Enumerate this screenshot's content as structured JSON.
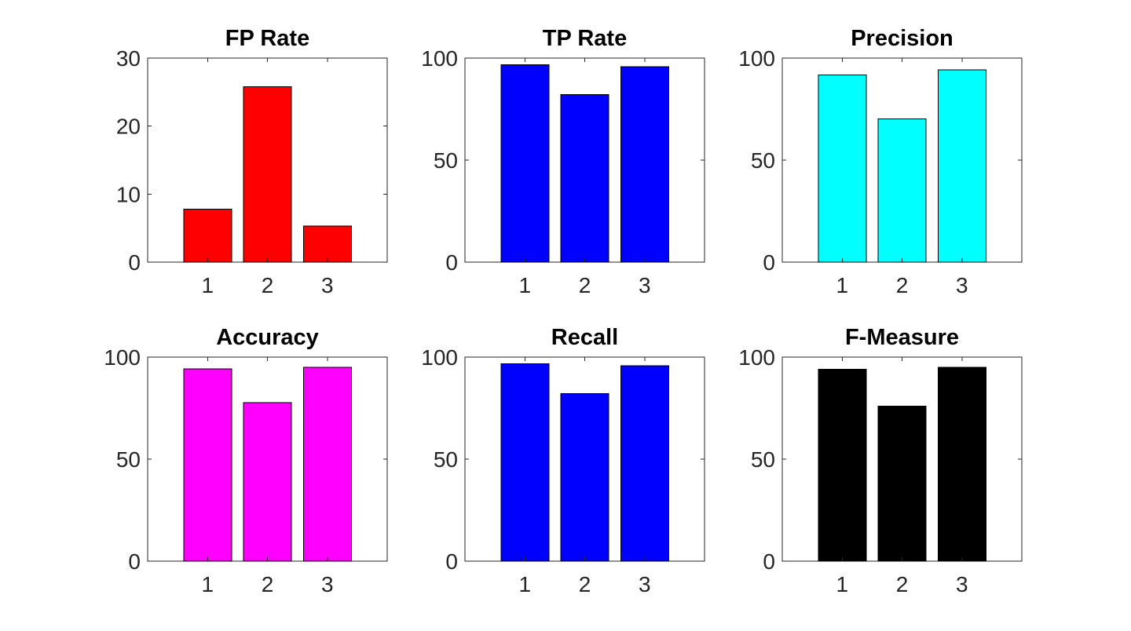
{
  "chart_data": [
    {
      "type": "bar",
      "title": "FP Rate",
      "categories": [
        "1",
        "2",
        "3"
      ],
      "values": [
        7.8,
        25.8,
        5.3
      ],
      "ylim": [
        0,
        30
      ],
      "yticks": [
        "0",
        "10",
        "20",
        "30"
      ],
      "color": "#ff0000",
      "grid": false
    },
    {
      "type": "bar",
      "title": "TP Rate",
      "categories": [
        "1",
        "2",
        "3"
      ],
      "values": [
        96.7,
        82.2,
        95.8
      ],
      "ylim": [
        0,
        100
      ],
      "yticks": [
        "0",
        "50",
        "100"
      ],
      "color": "#0000ff",
      "grid": false
    },
    {
      "type": "bar",
      "title": "Precision",
      "categories": [
        "1",
        "2",
        "3"
      ],
      "values": [
        91.7,
        70.1,
        94.2
      ],
      "ylim": [
        0,
        100
      ],
      "yticks": [
        "0",
        "50",
        "100"
      ],
      "color": "#00ffff",
      "grid": false
    },
    {
      "type": "bar",
      "title": "Accuracy",
      "categories": [
        "1",
        "2",
        "3"
      ],
      "values": [
        94.2,
        77.7,
        95.0
      ],
      "ylim": [
        0,
        100
      ],
      "yticks": [
        "0",
        "50",
        "100"
      ],
      "color": "#ff00ff",
      "grid": false
    },
    {
      "type": "bar",
      "title": "Recall",
      "categories": [
        "1",
        "2",
        "3"
      ],
      "values": [
        96.7,
        82.2,
        95.8
      ],
      "ylim": [
        0,
        100
      ],
      "yticks": [
        "0",
        "50",
        "100"
      ],
      "color": "#0000ff",
      "grid": false
    },
    {
      "type": "bar",
      "title": "F-Measure",
      "categories": [
        "1",
        "2",
        "3"
      ],
      "values": [
        94.0,
        75.9,
        95.0
      ],
      "ylim": [
        0,
        100
      ],
      "yticks": [
        "0",
        "50",
        "100"
      ],
      "color": "#000000",
      "grid": false
    }
  ]
}
